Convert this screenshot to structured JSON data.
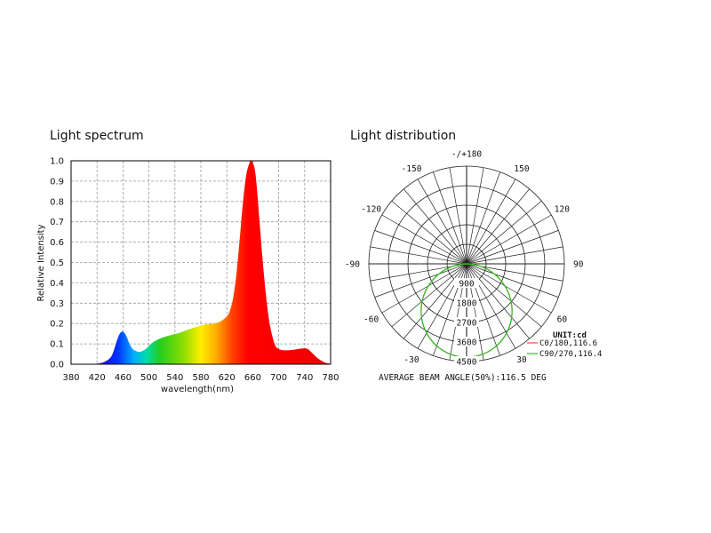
{
  "chart_data": [
    {
      "type": "area",
      "title": "Light spectrum",
      "xlabel": "wavelength(nm)",
      "ylabel": "Relative Intensity",
      "xlim": [
        380,
        780
      ],
      "ylim": [
        0,
        1.0
      ],
      "x_ticks": [
        "380",
        "420",
        "460",
        "500",
        "540",
        "580",
        "620",
        "660",
        "700",
        "740",
        "780"
      ],
      "y_ticks": [
        "0.0",
        "0.1",
        "0.2",
        "0.3",
        "0.4",
        "0.5",
        "0.6",
        "0.7",
        "0.8",
        "0.9",
        "1.0"
      ],
      "grid": true,
      "series": [
        {
          "x": [
            380,
            400,
            420,
            430,
            440,
            445,
            450,
            455,
            460,
            465,
            470,
            475,
            480,
            485,
            490,
            495,
            500,
            505,
            510,
            520,
            530,
            540,
            550,
            560,
            570,
            580,
            590,
            600,
            610,
            620,
            625,
            630,
            635,
            640,
            645,
            650,
            655,
            658,
            660,
            663,
            666,
            670,
            675,
            680,
            685,
            690,
            695,
            700,
            705,
            710,
            720,
            730,
            740,
            745,
            750,
            760,
            770,
            780
          ],
          "values": [
            0.0,
            0.0,
            0.003,
            0.01,
            0.03,
            0.06,
            0.11,
            0.15,
            0.16,
            0.14,
            0.1,
            0.075,
            0.065,
            0.06,
            0.065,
            0.075,
            0.09,
            0.105,
            0.115,
            0.13,
            0.14,
            0.148,
            0.158,
            0.17,
            0.18,
            0.19,
            0.197,
            0.2,
            0.21,
            0.235,
            0.265,
            0.33,
            0.45,
            0.62,
            0.8,
            0.93,
            0.99,
            1.0,
            0.99,
            0.96,
            0.88,
            0.72,
            0.52,
            0.35,
            0.22,
            0.14,
            0.09,
            0.075,
            0.07,
            0.068,
            0.07,
            0.075,
            0.078,
            0.074,
            0.06,
            0.03,
            0.01,
            0.002
          ]
        }
      ]
    },
    {
      "type": "polar",
      "title": "Light distribution",
      "angle_labels": [
        {
          "angle": 180,
          "label": "-/+180"
        },
        {
          "angle": 150,
          "label": "150"
        },
        {
          "angle": 120,
          "label": "120"
        },
        {
          "angle": 90,
          "label": "90"
        },
        {
          "angle": 60,
          "label": "60"
        },
        {
          "angle": 30,
          "label": "30"
        },
        {
          "angle": -30,
          "label": "-30"
        },
        {
          "angle": -60,
          "label": "-60"
        },
        {
          "angle": -90,
          "label": "-90"
        },
        {
          "angle": -120,
          "label": "-120"
        },
        {
          "angle": -150,
          "label": "-150"
        }
      ],
      "radial_labels": [
        "900",
        "1800",
        "2700",
        "3600",
        "4500"
      ],
      "radial_max": 4500,
      "unit": "UNIT:cd",
      "series": [
        {
          "name": "C0/180,116.6",
          "color": "#ff4444",
          "peak": 4300,
          "beam": 116.6
        },
        {
          "name": "C90/270,116.4",
          "color": "#22c922",
          "peak": 4300,
          "beam": 116.4
        }
      ],
      "footer": "AVERAGE BEAM ANGLE(50%):116.5 DEG"
    }
  ]
}
